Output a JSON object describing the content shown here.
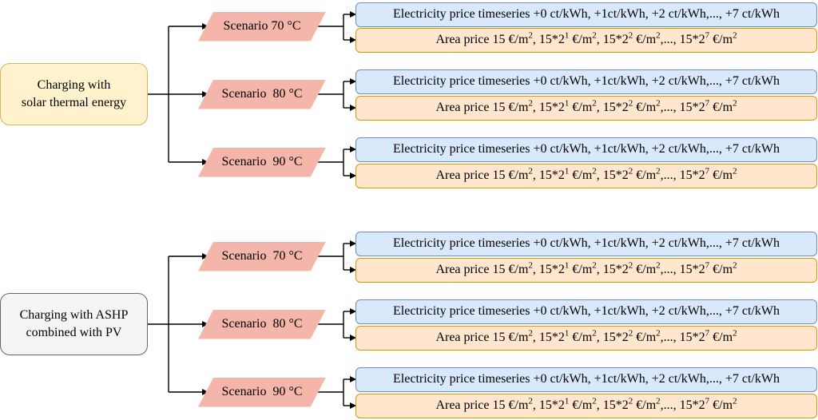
{
  "roots": [
    {
      "id": "solar",
      "label": "Charging with\nsolar thermal energy",
      "scenarios": [
        {
          "label": "Scenario 70 °C"
        },
        {
          "label": "Scenario  80 °C"
        },
        {
          "label": "Scenario  90 °C"
        }
      ]
    },
    {
      "id": "ashp",
      "label": "Charging with ASHP\ncombined with PV",
      "scenarios": [
        {
          "label": "Scenario  70 °C"
        },
        {
          "label": "Scenario  80 °C"
        },
        {
          "label": "Scenario  90 °C"
        }
      ]
    }
  ],
  "electricity_label": "Electricity price timeseries +0 ct/kWh, +1ct/kWh, +2 ct/kWh,..., +7 ct/kWh",
  "area_parts": {
    "p1": "Area price 15 €/m",
    "s1": "2",
    "p2": ", 15*2",
    "s2": "1",
    "p3": " €/m",
    "s3": "2",
    "p4": ", 15*2",
    "s4": "2",
    "p5": " €/m",
    "s5": "2",
    "p6": ",..., 15*2",
    "s6": "7",
    "p7": " €/m",
    "s7": "2"
  },
  "colors": {
    "solar_fill": "#fff2cc",
    "solar_stroke": "#d6b656",
    "ashp_fill": "#f5f5f5",
    "ashp_stroke": "#666666",
    "scenario_fill": "#f4b6ab",
    "electricity_fill": "#dae8fc",
    "electricity_stroke": "#6c8ebf",
    "area_fill": "#ffe6cc",
    "area_stroke": "#d79b00"
  }
}
